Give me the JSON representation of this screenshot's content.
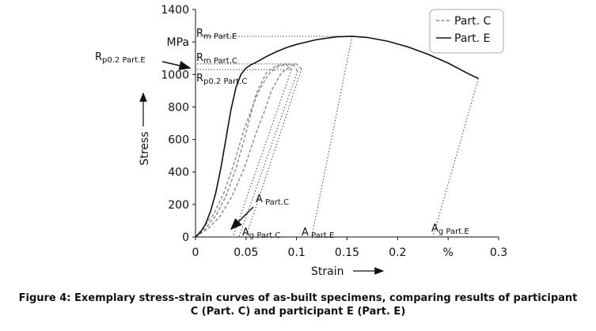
{
  "chart_data": {
    "type": "line",
    "xlabel": "Strain",
    "ylabel": "Stress",
    "xlim": [
      0,
      0.3
    ],
    "ylim": [
      0,
      1400
    ],
    "x_ticks": [
      "0",
      "0.05",
      "0.1",
      "0.15",
      "0.2",
      "%",
      "0.3"
    ],
    "y_ticks": [
      "0",
      "200",
      "400",
      "600",
      "800",
      "1000",
      "MPa",
      "1400"
    ],
    "grid": false,
    "legend_position": "top-right",
    "legend": [
      {
        "label": "Part. C",
        "style": "dashed",
        "color": "#888888"
      },
      {
        "label": "Part. E",
        "style": "solid",
        "color": "#111111"
      }
    ],
    "series": [
      {
        "name": "Part. C",
        "style": "dashed",
        "curves": [
          {
            "x": [
              0.0,
              0.01,
              0.02,
              0.03,
              0.04,
              0.05,
              0.055,
              0.06,
              0.07,
              0.08,
              0.09,
              0.097,
              0.101
            ],
            "y": [
              0,
              55,
              130,
              250,
              420,
              640,
              760,
              880,
              1010,
              1055,
              1065,
              1060,
              1020
            ]
          },
          {
            "x": [
              0.0,
              0.012,
              0.024,
              0.036,
              0.048,
              0.06,
              0.068,
              0.075,
              0.085,
              0.095,
              0.1,
              0.105
            ],
            "y": [
              0,
              50,
              125,
              250,
              420,
              640,
              770,
              900,
              1010,
              1055,
              1065,
              1035
            ]
          },
          {
            "x": [
              0.0,
              0.008,
              0.018,
              0.028,
              0.038,
              0.048,
              0.055,
              0.062,
              0.072,
              0.082,
              0.09,
              0.095
            ],
            "y": [
              0,
              60,
              140,
              270,
              450,
              660,
              780,
              890,
              1000,
              1050,
              1060,
              1030
            ]
          }
        ]
      },
      {
        "name": "Part. E",
        "style": "solid",
        "x": [
          0.0,
          0.005,
          0.01,
          0.015,
          0.02,
          0.025,
          0.03,
          0.035,
          0.04,
          0.045,
          0.05,
          0.055,
          0.06,
          0.07,
          0.08,
          0.09,
          0.1,
          0.12,
          0.14,
          0.155,
          0.17,
          0.19,
          0.21,
          0.23,
          0.25,
          0.27,
          0.28
        ],
        "y": [
          0,
          30,
          80,
          160,
          270,
          420,
          600,
          780,
          920,
          1000,
          1040,
          1060,
          1075,
          1110,
          1140,
          1165,
          1185,
          1215,
          1232,
          1235,
          1228,
          1205,
          1170,
          1125,
          1070,
          1005,
          975
        ]
      }
    ],
    "unloading_lines": [
      {
        "series": "Part. E",
        "x": [
          0.155,
          0.115
        ],
        "y": [
          1235,
          0
        ]
      },
      {
        "series": "Part. E",
        "x": [
          0.28,
          0.235
        ],
        "y": [
          975,
          0
        ]
      },
      {
        "series": "Part. C",
        "x": [
          0.101,
          0.043
        ],
        "y": [
          1020,
          0
        ]
      },
      {
        "series": "Part. C",
        "x": [
          0.105,
          0.05
        ],
        "y": [
          1035,
          0
        ]
      },
      {
        "series": "Part. C",
        "x": [
          0.095,
          0.037
        ],
        "y": [
          1030,
          0
        ]
      }
    ],
    "reference_lines": [
      {
        "label_main": "R",
        "label_sub": "m Part.E",
        "y": 1235,
        "x_end": 0.155
      },
      {
        "label_main": "R",
        "label_sub": "m Part.C",
        "y": 1065,
        "x_end": 0.1
      },
      {
        "label_main": "R",
        "label_sub": "p0.2 Part.C",
        "y": 1030,
        "x_end": 0.095
      }
    ],
    "annotations": [
      {
        "main": "R",
        "sub": "p0.2 Part.E",
        "x": 0.0,
        "y": 1090
      },
      {
        "main": "A",
        "sub": " Part.C",
        "x": 0.06,
        "y": 200
      },
      {
        "main": "A",
        "sub": "g Part.C",
        "x": 0.045,
        "y": 0
      },
      {
        "main": "A",
        "sub": " Part.E",
        "x": 0.105,
        "y": 0
      },
      {
        "main": "A",
        "sub": "g Part.E",
        "x": 0.235,
        "y": 0
      }
    ]
  },
  "caption": {
    "line1": "Figure 4: Exemplary stress-strain curves of as-built specimens, comparing results of participant",
    "line2": "C (Part. C) and participant E (Part. E)"
  }
}
